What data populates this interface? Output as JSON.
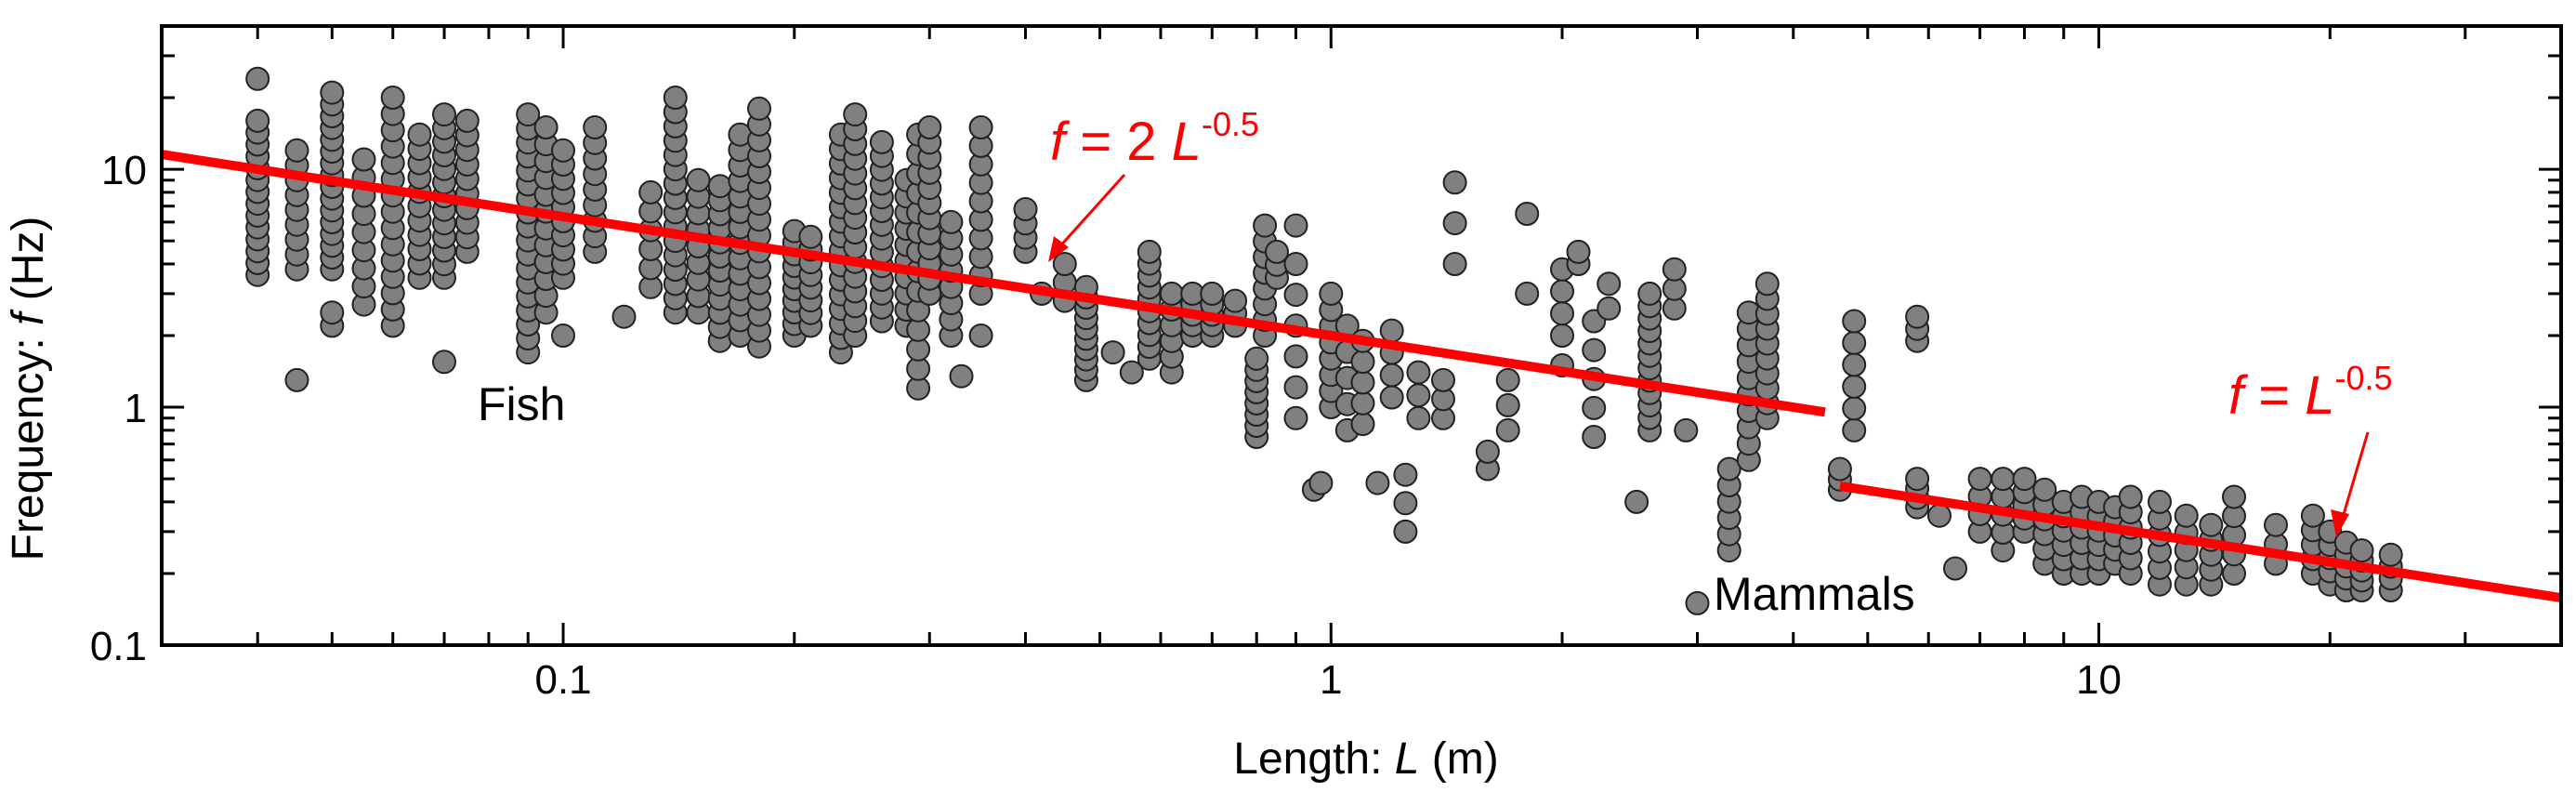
{
  "chart_data": {
    "type": "scatter",
    "x_scale": "log",
    "y_scale": "log",
    "xlim": [
      0.03,
      40
    ],
    "ylim": [
      0.1,
      40
    ],
    "grid": false,
    "xlabel": {
      "prefix": "Length: ",
      "var": "L",
      "suffix": " (m)"
    },
    "ylabel": {
      "prefix": "Frequency: ",
      "var": "f",
      "suffix": " (Hz)"
    },
    "x_ticks": [
      {
        "value": 0.1,
        "label": "0.1"
      },
      {
        "value": 1,
        "label": "1"
      },
      {
        "value": 10,
        "label": "10"
      }
    ],
    "y_ticks": [
      {
        "value": 0.1,
        "label": "0.1"
      },
      {
        "value": 1,
        "label": "1"
      },
      {
        "value": 10,
        "label": "10"
      }
    ],
    "colors": {
      "marker_fill": "#808080",
      "marker_stroke": "#222222",
      "fit_line": "#ff0000",
      "axes": "#000000"
    },
    "annotations": {
      "fish_label": "Fish",
      "mammals_label": "Mammals",
      "fit_fish": {
        "f": "f",
        "eq": " = 2 ",
        "L": "L",
        "exp": "-0.5"
      },
      "fit_mammals": {
        "f": "f",
        "eq": " = ",
        "L": "L",
        "exp": "-0.5"
      }
    },
    "fit_lines": [
      {
        "name": "fish_fit",
        "coef": 2,
        "exponent": -0.5,
        "x_range": [
          0.03,
          4.4
        ]
      },
      {
        "name": "mammal_fit",
        "coef": 1,
        "exponent": -0.5,
        "x_range": [
          4.6,
          40
        ]
      }
    ],
    "series": [
      {
        "name": "Fish",
        "columns": [
          {
            "x": 0.04,
            "ymin": 3.6,
            "ymax": 16,
            "n": 14
          },
          {
            "x": 0.04,
            "y": 24
          },
          {
            "x": 0.045,
            "ymin": 3.8,
            "ymax": 12,
            "n": 9
          },
          {
            "x": 0.045,
            "y": 1.3
          },
          {
            "x": 0.05,
            "ymin": 3.8,
            "ymax": 21,
            "n": 16
          },
          {
            "x": 0.05,
            "y": 2.2
          },
          {
            "x": 0.05,
            "y": 2.5
          },
          {
            "x": 0.055,
            "ymin": 2.7,
            "ymax": 11,
            "n": 9
          },
          {
            "x": 0.06,
            "ymin": 2.2,
            "ymax": 20,
            "n": 15
          },
          {
            "x": 0.065,
            "ymin": 3.5,
            "ymax": 14,
            "n": 11
          },
          {
            "x": 0.07,
            "ymin": 3.5,
            "ymax": 17,
            "n": 13
          },
          {
            "x": 0.075,
            "ymin": 4.5,
            "ymax": 16,
            "n": 10
          },
          {
            "x": 0.07,
            "y": 1.55
          },
          {
            "x": 0.09,
            "ymin": 1.7,
            "ymax": 17,
            "n": 18
          },
          {
            "x": 0.095,
            "ymin": 2.5,
            "ymax": 15,
            "n": 12
          },
          {
            "x": 0.1,
            "ymin": 3.5,
            "ymax": 12,
            "n": 10
          },
          {
            "x": 0.1,
            "y": 2.0
          },
          {
            "x": 0.11,
            "ymin": 4.5,
            "ymax": 15,
            "n": 9
          },
          {
            "x": 0.12,
            "y": 2.4
          },
          {
            "x": 0.13,
            "ymin": 3.2,
            "ymax": 8,
            "n": 6
          },
          {
            "x": 0.14,
            "ymin": 2.5,
            "ymax": 20,
            "n": 16
          },
          {
            "x": 0.15,
            "ymin": 2.5,
            "ymax": 9,
            "n": 9
          },
          {
            "x": 0.16,
            "ymin": 1.9,
            "ymax": 8.5,
            "n": 12
          },
          {
            "x": 0.17,
            "ymin": 2.0,
            "ymax": 14,
            "n": 14
          },
          {
            "x": 0.18,
            "ymin": 1.8,
            "ymax": 18,
            "n": 16
          },
          {
            "x": 0.2,
            "ymin": 2.0,
            "ymax": 5.5,
            "n": 10
          },
          {
            "x": 0.21,
            "ymin": 2.2,
            "ymax": 5.2,
            "n": 8
          },
          {
            "x": 0.23,
            "ymin": 1.7,
            "ymax": 14,
            "n": 16
          },
          {
            "x": 0.24,
            "ymin": 2.0,
            "ymax": 17,
            "n": 16
          },
          {
            "x": 0.26,
            "ymin": 2.3,
            "ymax": 13,
            "n": 14
          },
          {
            "x": 0.28,
            "ymin": 2.2,
            "ymax": 9,
            "n": 10
          },
          {
            "x": 0.29,
            "ymin": 1.2,
            "ymax": 14,
            "n": 14
          },
          {
            "x": 0.3,
            "ymin": 3.0,
            "ymax": 15,
            "n": 12
          },
          {
            "x": 0.32,
            "ymin": 2.0,
            "ymax": 6,
            "n": 8
          },
          {
            "x": 0.35,
            "ymin": 3.0,
            "ymax": 15,
            "n": 10
          },
          {
            "x": 0.33,
            "y": 1.35
          },
          {
            "x": 0.35,
            "y": 2.0
          },
          {
            "x": 0.4,
            "ymin": 4.5,
            "ymax": 6.8,
            "n": 4
          },
          {
            "x": 0.42,
            "y": 3.0
          },
          {
            "x": 0.45,
            "ymin": 2.8,
            "ymax": 4.0,
            "n": 3
          },
          {
            "x": 0.48,
            "ymin": 1.3,
            "ymax": 3.2,
            "n": 10
          },
          {
            "x": 0.52,
            "y": 1.7
          },
          {
            "x": 0.55,
            "y": 1.4
          },
          {
            "x": 0.58,
            "ymin": 1.6,
            "ymax": 4.5,
            "n": 10
          },
          {
            "x": 0.62,
            "ymin": 1.4,
            "ymax": 3.0,
            "n": 6
          },
          {
            "x": 0.66,
            "ymin": 2.0,
            "ymax": 3.0,
            "n": 5
          },
          {
            "x": 0.7,
            "ymin": 2.0,
            "ymax": 3.0,
            "n": 5
          },
          {
            "x": 0.75,
            "ymin": 2.2,
            "ymax": 2.8,
            "n": 3
          },
          {
            "x": 0.8,
            "ymin": 0.75,
            "ymax": 1.6,
            "n": 8
          },
          {
            "x": 0.82,
            "ymin": 2.0,
            "ymax": 5.8,
            "n": 8
          },
          {
            "x": 0.85,
            "ymin": 3.5,
            "ymax": 4.5,
            "n": 3
          },
          {
            "x": 0.9,
            "ymin": 0.9,
            "ymax": 4.0,
            "n": 6
          },
          {
            "x": 0.9,
            "y": 5.8
          },
          {
            "x": 0.95,
            "y": 0.45
          },
          {
            "x": 0.97,
            "y": 0.48
          },
          {
            "x": 1.0,
            "ymin": 1.0,
            "ymax": 3.0,
            "n": 8
          },
          {
            "x": 1.05,
            "ymin": 0.8,
            "ymax": 2.2,
            "n": 5
          },
          {
            "x": 1.1,
            "ymin": 0.85,
            "ymax": 1.9,
            "n": 5
          },
          {
            "x": 1.15,
            "y": 0.48
          },
          {
            "x": 1.2,
            "ymin": 1.1,
            "ymax": 2.1,
            "n": 4
          },
          {
            "x": 1.25,
            "ymin": 0.3,
            "ymax": 0.52,
            "n": 3
          },
          {
            "x": 1.3,
            "ymin": 0.9,
            "ymax": 1.4,
            "n": 3
          },
          {
            "x": 1.4,
            "ymin": 0.9,
            "ymax": 1.3,
            "n": 3
          },
          {
            "x": 1.45,
            "ymin": 4.0,
            "ymax": 8.8,
            "n": 3
          },
          {
            "x": 1.6,
            "ymin": 0.55,
            "ymax": 0.65,
            "n": 2
          },
          {
            "x": 1.7,
            "ymin": 0.8,
            "ymax": 1.3,
            "n": 3
          },
          {
            "x": 1.8,
            "y": 6.5
          },
          {
            "x": 1.8,
            "y": 3.0
          },
          {
            "x": 2.0,
            "ymin": 2.0,
            "ymax": 3.8,
            "n": 4
          },
          {
            "x": 2.0,
            "y": 1.5
          },
          {
            "x": 2.1,
            "ymin": 4.0,
            "ymax": 4.5,
            "n": 2
          },
          {
            "x": 2.2,
            "ymin": 0.75,
            "ymax": 2.3,
            "n": 5
          },
          {
            "x": 2.3,
            "ymin": 2.6,
            "ymax": 3.3,
            "n": 2
          },
          {
            "x": 2.5,
            "y": 0.4
          },
          {
            "x": 2.6,
            "ymin": 0.8,
            "ymax": 3.0,
            "n": 12
          },
          {
            "x": 2.9,
            "y": 0.8
          },
          {
            "x": 2.8,
            "ymin": 2.6,
            "ymax": 3.8,
            "n": 3
          },
          {
            "x": 3.0,
            "y": 0.15
          },
          {
            "x": 3.3,
            "ymin": 0.25,
            "ymax": 0.55,
            "n": 6
          },
          {
            "x": 3.5,
            "ymin": 0.6,
            "ymax": 2.5,
            "n": 10
          },
          {
            "x": 3.7,
            "ymin": 0.9,
            "ymax": 3.3,
            "n": 10
          },
          {
            "x": 4.8,
            "ymin": 0.8,
            "ymax": 2.3,
            "n": 6
          },
          {
            "x": 5.8,
            "ymin": 1.9,
            "ymax": 2.4,
            "n": 3
          }
        ]
      },
      {
        "name": "Mammals",
        "columns": [
          {
            "x": 4.6,
            "ymin": 0.45,
            "ymax": 0.55,
            "n": 3
          },
          {
            "x": 5.8,
            "ymin": 0.38,
            "ymax": 0.5,
            "n": 4
          },
          {
            "x": 6.2,
            "y": 0.35
          },
          {
            "x": 6.5,
            "y": 0.21
          },
          {
            "x": 7.0,
            "ymin": 0.3,
            "ymax": 0.5,
            "n": 4
          },
          {
            "x": 7.5,
            "ymin": 0.25,
            "ymax": 0.5,
            "n": 5
          },
          {
            "x": 8.0,
            "ymin": 0.3,
            "ymax": 0.5,
            "n": 5
          },
          {
            "x": 8.5,
            "ymin": 0.22,
            "ymax": 0.45,
            "n": 6
          },
          {
            "x": 9.0,
            "ymin": 0.2,
            "ymax": 0.4,
            "n": 6
          },
          {
            "x": 9.5,
            "ymin": 0.2,
            "ymax": 0.42,
            "n": 6
          },
          {
            "x": 10.0,
            "ymin": 0.2,
            "ymax": 0.4,
            "n": 6
          },
          {
            "x": 10.5,
            "ymin": 0.22,
            "ymax": 0.38,
            "n": 5
          },
          {
            "x": 11.0,
            "ymin": 0.2,
            "ymax": 0.42,
            "n": 6
          },
          {
            "x": 12.0,
            "ymin": 0.18,
            "ymax": 0.4,
            "n": 6
          },
          {
            "x": 13.0,
            "ymin": 0.18,
            "ymax": 0.35,
            "n": 5
          },
          {
            "x": 14.0,
            "ymin": 0.18,
            "ymax": 0.32,
            "n": 5
          },
          {
            "x": 15.0,
            "ymin": 0.2,
            "ymax": 0.42,
            "n": 5
          },
          {
            "x": 17.0,
            "ymin": 0.22,
            "ymax": 0.32,
            "n": 3
          },
          {
            "x": 19.0,
            "ymin": 0.2,
            "ymax": 0.35,
            "n": 5
          },
          {
            "x": 20.0,
            "ymin": 0.18,
            "ymax": 0.3,
            "n": 5
          },
          {
            "x": 21.0,
            "ymin": 0.17,
            "ymax": 0.27,
            "n": 5
          },
          {
            "x": 22.0,
            "ymin": 0.17,
            "ymax": 0.25,
            "n": 5
          },
          {
            "x": 24.0,
            "ymin": 0.17,
            "ymax": 0.24,
            "n": 4
          }
        ]
      }
    ]
  }
}
